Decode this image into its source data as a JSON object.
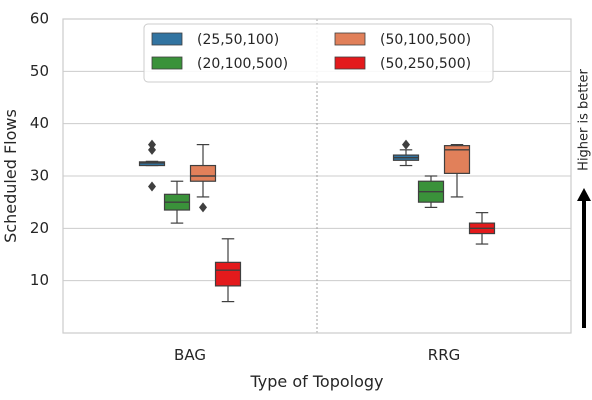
{
  "chart_data": {
    "type": "box",
    "xlabel": "Type of Topology",
    "ylabel": "Scheduled Flows",
    "ylim": [
      0,
      60
    ],
    "yticks": [
      10,
      20,
      30,
      40,
      50,
      60
    ],
    "categories": [
      "BAG",
      "RRG"
    ],
    "grid": true,
    "legend_position": "top-center",
    "annotation": "Higher is better",
    "series": [
      {
        "name": "(25,50,100)",
        "color": "#3274a1",
        "boxes": [
          {
            "category": "BAG",
            "whisker_low": 32,
            "q1": 32,
            "median": 32.5,
            "q3": 32.7,
            "whisker_high": 32.8,
            "outliers": [
              28,
              35,
              36
            ]
          },
          {
            "category": "RRG",
            "whisker_low": 32,
            "q1": 33,
            "median": 33.5,
            "q3": 34,
            "whisker_high": 35,
            "outliers": [
              36
            ]
          }
        ]
      },
      {
        "name": "(20,100,500)",
        "color": "#3a923a",
        "boxes": [
          {
            "category": "BAG",
            "whisker_low": 21,
            "q1": 23.5,
            "median": 25,
            "q3": 26.5,
            "whisker_high": 29,
            "outliers": []
          },
          {
            "category": "RRG",
            "whisker_low": 24,
            "q1": 25,
            "median": 27,
            "q3": 29,
            "whisker_high": 30,
            "outliers": []
          }
        ]
      },
      {
        "name": "(50,100,500)",
        "color": "#e1805a",
        "boxes": [
          {
            "category": "BAG",
            "whisker_low": 26,
            "q1": 29,
            "median": 30,
            "q3": 32,
            "whisker_high": 36,
            "outliers": [
              24
            ]
          },
          {
            "category": "RRG",
            "whisker_low": 26,
            "q1": 30.5,
            "median": 35,
            "q3": 35.8,
            "whisker_high": 36,
            "outliers": []
          }
        ]
      },
      {
        "name": "(50,250,500)",
        "color": "#e31a1c",
        "boxes": [
          {
            "category": "BAG",
            "whisker_low": 6,
            "q1": 9,
            "median": 12,
            "q3": 13.5,
            "whisker_high": 18,
            "outliers": []
          },
          {
            "category": "RRG",
            "whisker_low": 17,
            "q1": 19,
            "median": 20,
            "q3": 21,
            "whisker_high": 23,
            "outliers": []
          }
        ]
      }
    ]
  }
}
